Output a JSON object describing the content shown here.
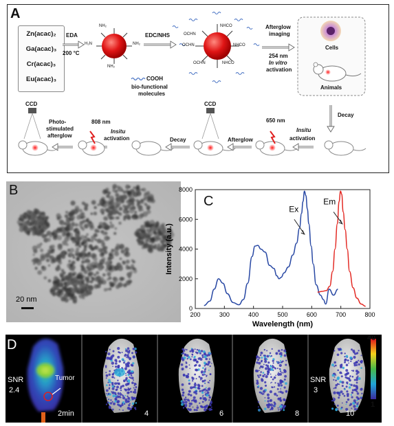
{
  "panel_a": {
    "letter": "A",
    "precursors": [
      "Zn(acac)₂",
      "Ga(acac)₃",
      "Cr(acac)₃",
      "Eu(acac)₃"
    ],
    "step_eda": "EDA",
    "step_temp": "200 °C",
    "np1_groups": [
      "H₂N",
      "NH₂",
      "NH₂",
      "NH₂",
      "NH₂",
      "NH₂",
      "H₂N",
      "NH₂"
    ],
    "step_edc": "EDC/NHS",
    "cooh_label": "COOH",
    "biofunctional_1": "bio-functional",
    "biofunctional_2": "molecules",
    "np2_groups": [
      "OCHN",
      "NHCO",
      "OCHN",
      "NHCO",
      "OCHN",
      "NHCO"
    ],
    "afterglow_imaging_1": "Afterglow",
    "afterglow_imaging_2": "imaging",
    "uv_254": "254 nm",
    "in_vitro": "In vitro",
    "activation_1": "activation",
    "cells_label": "Cells",
    "animals_label": "Animals",
    "decay_right": "Decay",
    "ccd_left": "CCD",
    "photo_stim_1": "Photo-",
    "photo_stim_2": "stimulated",
    "photo_stim_3": "afterglow",
    "nir_808": "808 nm",
    "insitu_1": "Insitu",
    "activation_2": "activation",
    "decay_mid": "Decay",
    "ccd_mid": "CCD",
    "afterglow_mid": "Afterglow",
    "red_650": "650 nm",
    "insitu_2": "Insitu",
    "activation_3": "activation"
  },
  "panel_b": {
    "letter": "B",
    "scale_label": "20 nm"
  },
  "panel_c": {
    "letter": "C",
    "chart_data": {
      "type": "line",
      "xlabel": "Wavelength (nm)",
      "ylabel": "Intensity (a.u.)",
      "xlim": [
        200,
        800
      ],
      "ylim": [
        0,
        8000
      ],
      "xticks": [
        200,
        300,
        400,
        500,
        600,
        700,
        800
      ],
      "yticks": [
        0,
        2000,
        4000,
        6000,
        8000
      ],
      "series": [
        {
          "name": "Ex",
          "color": "#2747a3",
          "x": [
            230,
            250,
            265,
            280,
            295,
            310,
            330,
            350,
            365,
            380,
            395,
            405,
            415,
            425,
            440,
            455,
            470,
            480,
            488,
            495,
            505,
            520,
            535,
            548,
            558,
            565,
            570,
            575,
            580,
            585,
            590,
            598,
            605,
            615,
            630,
            640,
            648,
            660,
            675,
            690
          ],
          "y": [
            200,
            500,
            1300,
            2000,
            1700,
            1000,
            400,
            250,
            600,
            1700,
            3500,
            4200,
            4250,
            4000,
            3800,
            2900,
            2700,
            2200,
            2000,
            2100,
            2400,
            2800,
            3600,
            4400,
            5400,
            6400,
            7200,
            7900,
            7600,
            6700,
            5700,
            4200,
            3000,
            1600,
            900,
            600,
            300,
            1300,
            900,
            1300
          ]
        },
        {
          "name": "Em",
          "color": "#e32a24",
          "x": [
            620,
            635,
            650,
            662,
            672,
            680,
            688,
            694,
            699,
            703,
            708,
            715,
            722,
            730,
            742,
            755,
            770,
            785
          ],
          "y": [
            1100,
            1150,
            1200,
            1500,
            2500,
            4000,
            5700,
            7200,
            7900,
            7700,
            6500,
            5300,
            4000,
            2500,
            1400,
            700,
            300,
            150
          ]
        }
      ],
      "annotations": [
        "Ex",
        "Em"
      ]
    }
  },
  "panel_d": {
    "letter": "D",
    "snr_label_1": "SNR",
    "snr_value_1": "2.4",
    "tumor_label": "Tumor",
    "time_labels": [
      "2min",
      "4",
      "6",
      "8",
      "10"
    ],
    "snr_label_2": "SNR",
    "snr_value_2": "3",
    "colorbar_max": "40",
    "colorbar_min": "1"
  }
}
